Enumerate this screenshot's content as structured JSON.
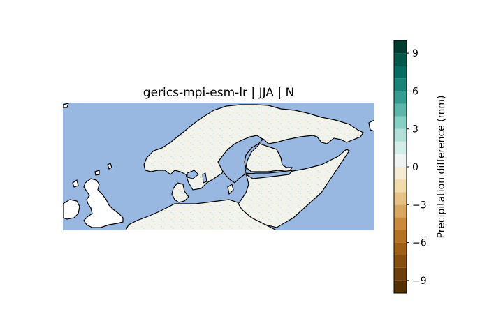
{
  "title": "gerics-mpi-esm-lr | JJA | N",
  "colors": {
    "ocean": "#98b8e2",
    "land_excluded": "#ffffff",
    "data_land_base": "#f1f3ec",
    "coastline": "#000000"
  },
  "colorbar": {
    "label": "Precipitation difference (mm)",
    "min": -10,
    "max": 10,
    "ticks": [
      {
        "value": 9,
        "label": "9"
      },
      {
        "value": 6,
        "label": "6"
      },
      {
        "value": 3,
        "label": "3"
      },
      {
        "value": 0,
        "label": "0"
      },
      {
        "value": -3,
        "label": "−3"
      },
      {
        "value": -6,
        "label": "−6"
      },
      {
        "value": -9,
        "label": "−9"
      }
    ],
    "bins": [
      {
        "from": -10,
        "to": -9,
        "color": "#543005"
      },
      {
        "from": -9,
        "to": -8,
        "color": "#6d3e08"
      },
      {
        "from": -8,
        "to": -7,
        "color": "#864f0b"
      },
      {
        "from": -7,
        "to": -6,
        "color": "#9f5f14"
      },
      {
        "from": -6,
        "to": -5,
        "color": "#b57322"
      },
      {
        "from": -5,
        "to": -4,
        "color": "#c98a3b"
      },
      {
        "from": -4,
        "to": -3,
        "color": "#d9a75e"
      },
      {
        "from": -3,
        "to": -2,
        "color": "#e6c385"
      },
      {
        "from": -2,
        "to": -1,
        "color": "#f2dcaa"
      },
      {
        "from": -1,
        "to": 0,
        "color": "#f6ecd3"
      },
      {
        "from": 0,
        "to": 1,
        "color": "#eef4f2"
      },
      {
        "from": 1,
        "to": 2,
        "color": "#d3ede8"
      },
      {
        "from": 2,
        "to": 3,
        "color": "#b0e0d7"
      },
      {
        "from": 3,
        "to": 4,
        "color": "#86cfc2"
      },
      {
        "from": 4,
        "to": 5,
        "color": "#5cb7aa"
      },
      {
        "from": 5,
        "to": 6,
        "color": "#359d90"
      },
      {
        "from": 6,
        "to": 7,
        "color": "#168477"
      },
      {
        "from": 7,
        "to": 8,
        "color": "#016d60"
      },
      {
        "from": 8,
        "to": 9,
        "color": "#01574a"
      },
      {
        "from": 9,
        "to": 10,
        "color": "#003c30"
      }
    ]
  }
}
